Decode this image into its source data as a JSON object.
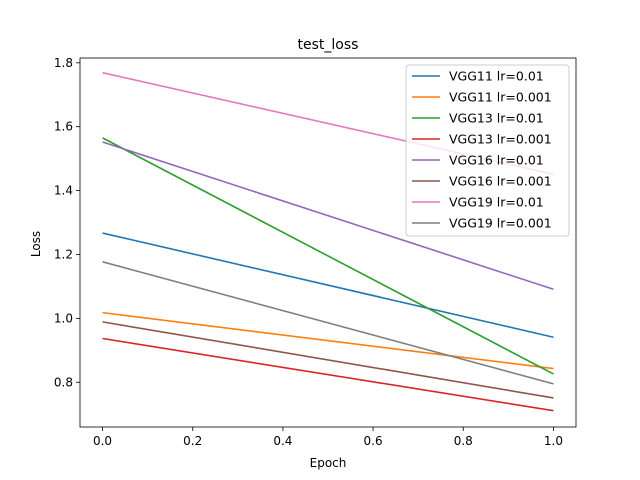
{
  "chart_data": {
    "type": "line",
    "title": "test_loss",
    "xlabel": "Epoch",
    "ylabel": "Loss",
    "xlim": [
      -0.05,
      1.05
    ],
    "ylim": [
      0.66,
      1.815
    ],
    "xticks": [
      0.0,
      0.2,
      0.4,
      0.6,
      0.8,
      1.0
    ],
    "xtick_labels": [
      "0.0",
      "0.2",
      "0.4",
      "0.6",
      "0.8",
      "1.0"
    ],
    "yticks": [
      0.8,
      1.0,
      1.2,
      1.4,
      1.6,
      1.8
    ],
    "ytick_labels": [
      "0.8",
      "1.0",
      "1.2",
      "1.4",
      "1.6",
      "1.8"
    ],
    "grid": false,
    "legend_position": "top-right",
    "x": [
      0,
      1
    ],
    "series": [
      {
        "name": "VGG11 lr=0.01",
        "color": "#1f77b4",
        "values": [
          1.267,
          0.941
        ]
      },
      {
        "name": "VGG11 lr=0.001",
        "color": "#ff7f0e",
        "values": [
          1.018,
          0.843
        ]
      },
      {
        "name": "VGG13 lr=0.01",
        "color": "#2ca02c",
        "values": [
          1.565,
          0.826
        ]
      },
      {
        "name": "VGG13 lr=0.001",
        "color": "#d62728",
        "values": [
          0.937,
          0.711
        ]
      },
      {
        "name": "VGG16 lr=0.01",
        "color": "#9467bd",
        "values": [
          1.552,
          1.091
        ]
      },
      {
        "name": "VGG16 lr=0.001",
        "color": "#8c564b",
        "values": [
          0.989,
          0.751
        ]
      },
      {
        "name": "VGG19 lr=0.01",
        "color": "#e377c2",
        "values": [
          1.769,
          1.451
        ]
      },
      {
        "name": "VGG19 lr=0.001",
        "color": "#7f7f7f",
        "values": [
          1.177,
          0.795
        ]
      }
    ]
  }
}
